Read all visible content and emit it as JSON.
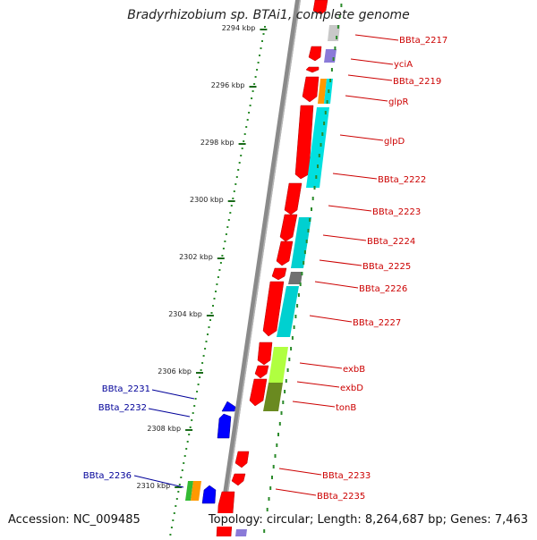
{
  "title": "Bradyrhizobium sp. BTAi1, complete genome",
  "accession": "Accession: NC_009485",
  "topology": "Topology: circular; Length: 8,264,687 bp; Genes: 7,463",
  "colors": {
    "backbone": "#8a8a8a",
    "scale_dots": "#2a8a2a",
    "gene_red": "#ff0000",
    "gene_blue": "#0000ff",
    "label_red": "#cc0000",
    "label_blue": "#000099",
    "cog_cyan": "#00e0e0",
    "cog_gray": "#c8c8c8",
    "cog_purple": "#8a7ad8",
    "cog_orange": "#ff9900",
    "cog_lime": "#b0ff40",
    "cog_olive": "#6a8a20",
    "cog_green": "#33bb33"
  },
  "scale_ticks": [
    "2294 kbp",
    "2296 kbp",
    "2298 kbp",
    "2300 kbp",
    "2302 kbp",
    "2304 kbp",
    "2306 kbp",
    "2308 kbp",
    "2310 kbp"
  ],
  "genes_forward": [
    "BBta_2217",
    "yciA",
    "BBta_2219",
    "glpR",
    "glpD",
    "BBta_2222",
    "BBta_2223",
    "BBta_2224",
    "BBta_2225",
    "BBta_2226",
    "BBta_2227",
    "exbB",
    "exbD",
    "tonB",
    "BBta_2233",
    "BBta_2235"
  ],
  "genes_reverse": [
    "BBta_2231",
    "BBta_2232",
    "BBta_2236"
  ]
}
